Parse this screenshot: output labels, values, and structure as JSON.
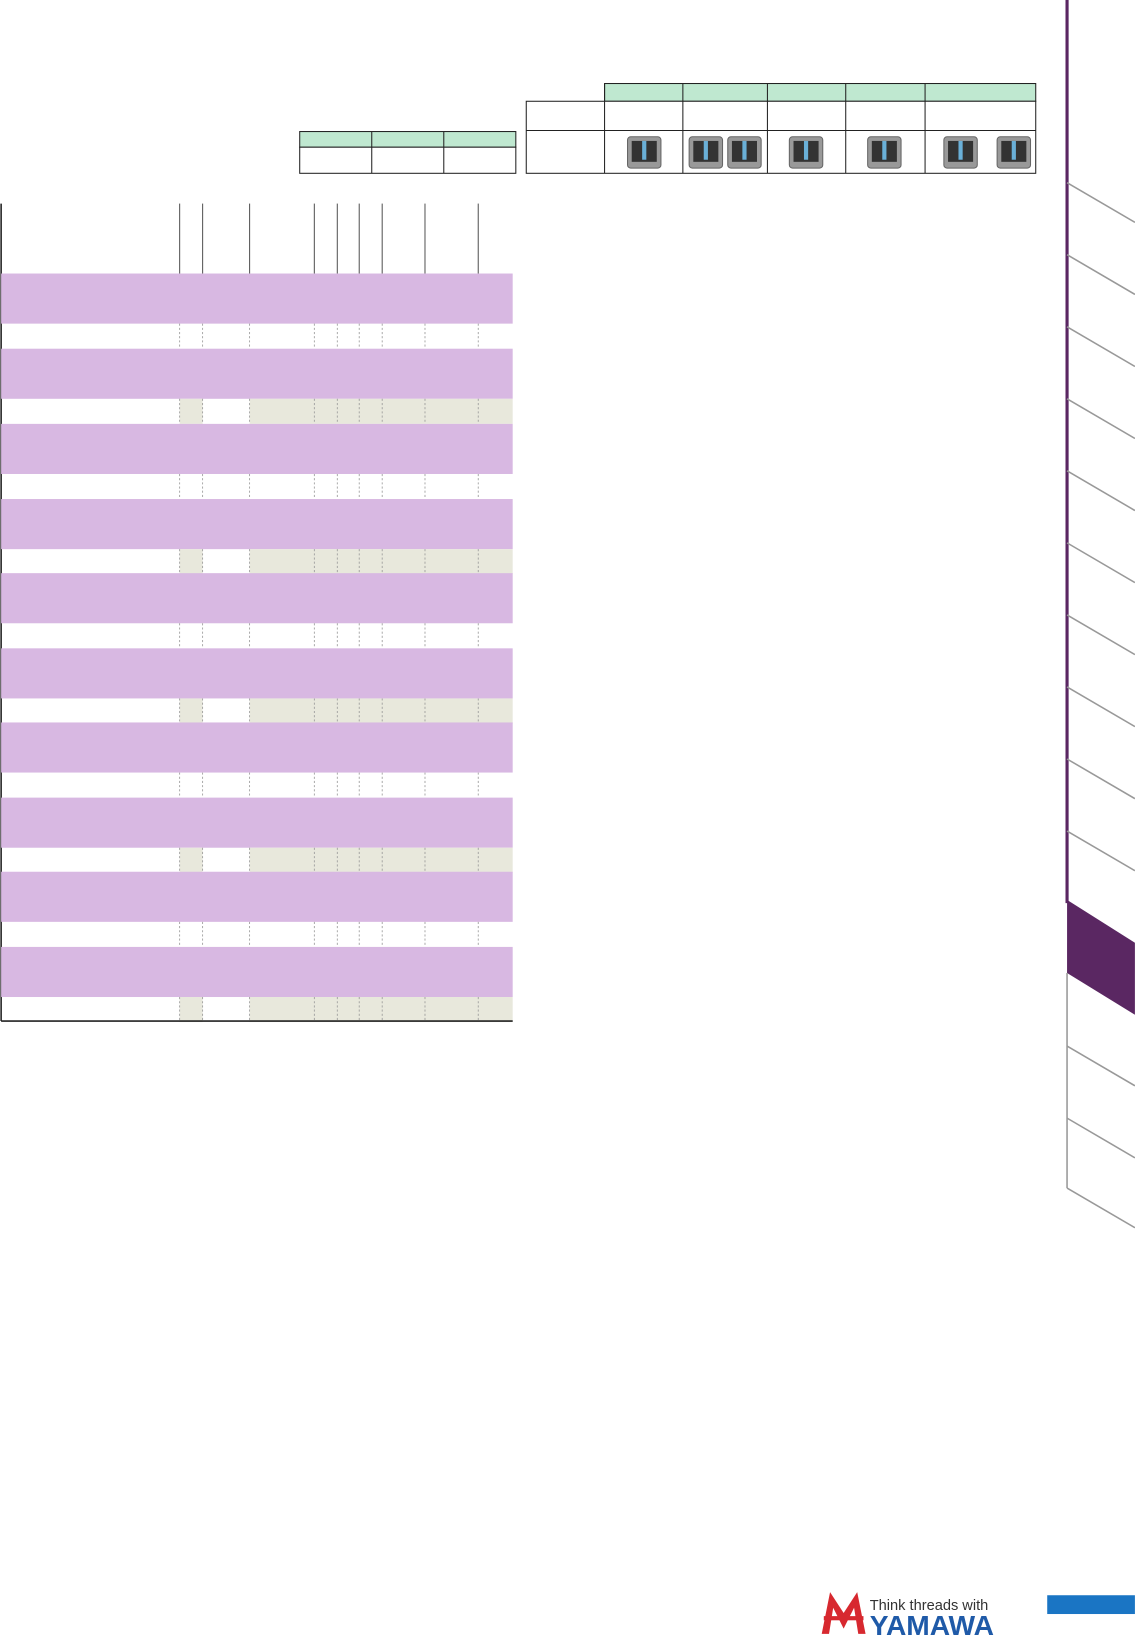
{
  "logo": {
    "tagline": "Think threads with",
    "name": "YAMAWA"
  }
}
